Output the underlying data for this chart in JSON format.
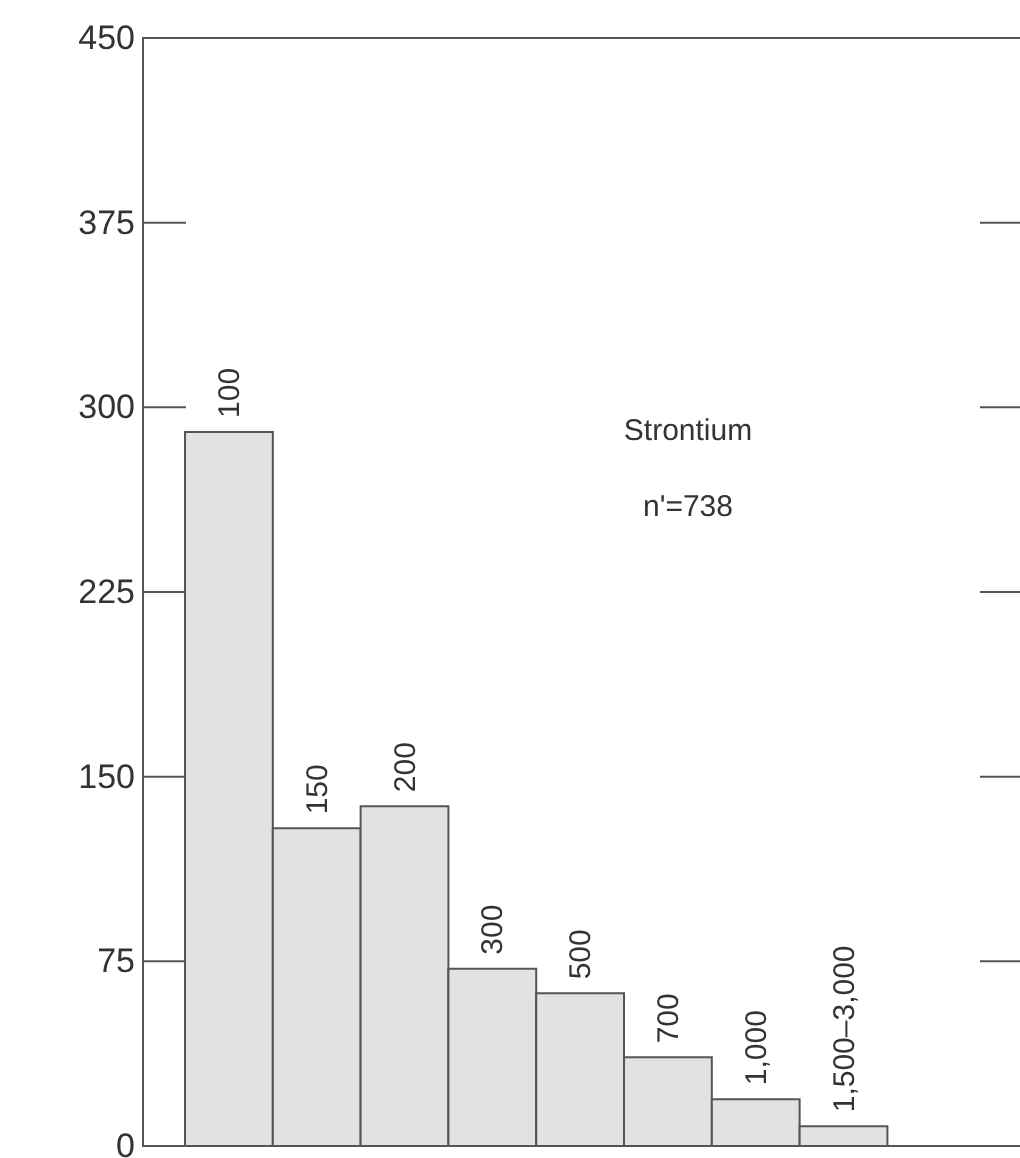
{
  "chart_data": {
    "type": "bar",
    "categories": [
      "100",
      "150",
      "200",
      "300",
      "500",
      "700",
      "1,000",
      "1,500–3,000"
    ],
    "values": [
      290,
      129,
      138,
      72,
      62,
      36,
      19,
      8
    ],
    "color": "#e2e2e2",
    "ylim": [
      0,
      450
    ],
    "yticks": [
      0,
      75,
      150,
      225,
      300,
      375,
      450
    ],
    "annotations": [
      "Strontium",
      "n'=738"
    ]
  }
}
